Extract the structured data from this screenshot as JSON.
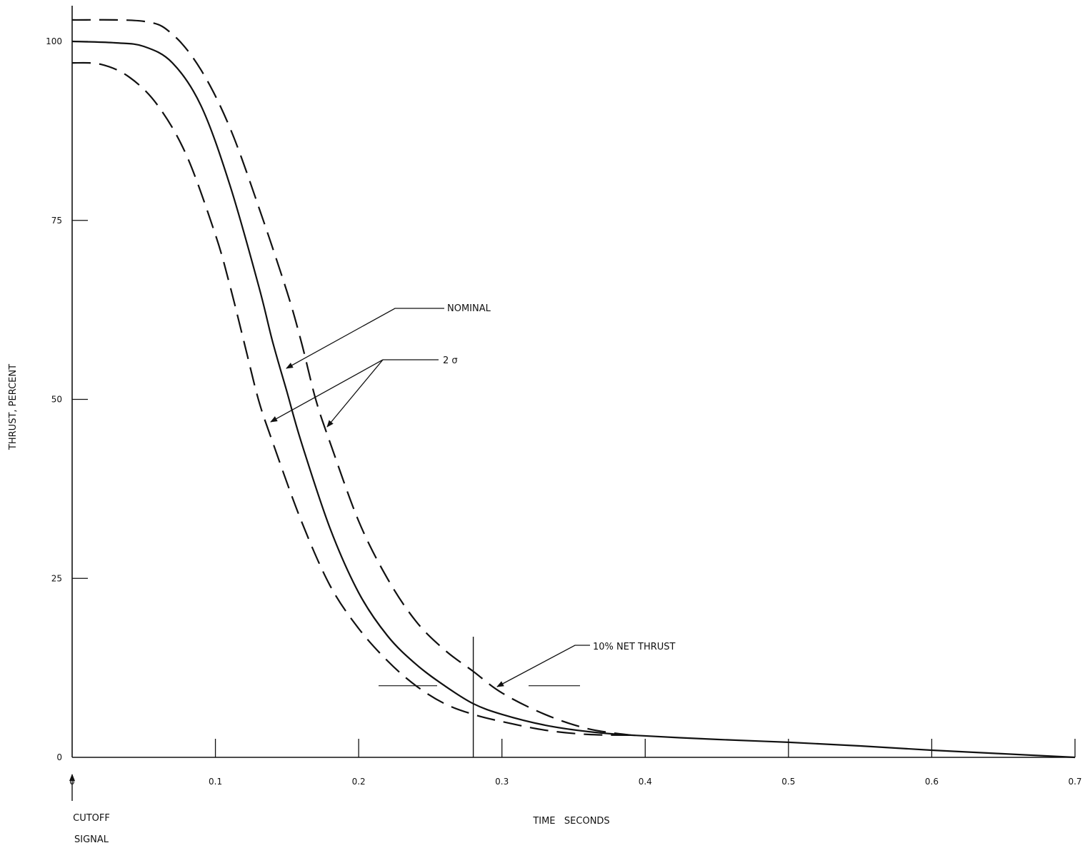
{
  "chart_data": {
    "type": "line",
    "title": "",
    "xlabel": "TIME   SECONDS",
    "ylabel": "THRUST, PERCENT",
    "xlim": [
      0,
      0.7
    ],
    "ylim": [
      0,
      105
    ],
    "x_ticks": [
      0,
      0.1,
      0.2,
      0.3,
      0.4,
      0.5,
      0.6,
      0.7
    ],
    "x_tick_labels": [
      "0",
      "0.1",
      "0.2",
      "0.3",
      "0.4",
      "0.5",
      "0.6",
      "0.7"
    ],
    "y_ticks": [
      0,
      25,
      50,
      75,
      100
    ],
    "y_tick_labels": [
      "0",
      "25",
      "50",
      "75",
      "100"
    ],
    "grid": false,
    "series": [
      {
        "name": "NOMINAL",
        "style": "solid",
        "points": [
          [
            0,
            100
          ],
          [
            0.03,
            99.8
          ],
          [
            0.05,
            99.3
          ],
          [
            0.07,
            97
          ],
          [
            0.09,
            91
          ],
          [
            0.11,
            80
          ],
          [
            0.13,
            66
          ],
          [
            0.14,
            58
          ],
          [
            0.15,
            51
          ],
          [
            0.16,
            44
          ],
          [
            0.18,
            32
          ],
          [
            0.2,
            23
          ],
          [
            0.22,
            17
          ],
          [
            0.24,
            13
          ],
          [
            0.26,
            10
          ],
          [
            0.28,
            7.5
          ],
          [
            0.3,
            6
          ],
          [
            0.33,
            4.5
          ],
          [
            0.36,
            3.6
          ],
          [
            0.39,
            3.1
          ],
          [
            0.45,
            2.5
          ],
          [
            0.5,
            2.1
          ],
          [
            0.55,
            1.6
          ],
          [
            0.6,
            1
          ],
          [
            0.65,
            0.5
          ],
          [
            0.7,
            0
          ]
        ]
      },
      {
        "name": "2 σ",
        "style": "dashed",
        "points": [
          [
            0,
            103
          ],
          [
            0.05,
            102.8
          ],
          [
            0.07,
            101
          ],
          [
            0.09,
            96
          ],
          [
            0.11,
            88
          ],
          [
            0.13,
            77
          ],
          [
            0.15,
            65
          ],
          [
            0.16,
            58
          ],
          [
            0.17,
            50
          ],
          [
            0.18,
            44
          ],
          [
            0.2,
            33
          ],
          [
            0.22,
            25
          ],
          [
            0.24,
            19
          ],
          [
            0.26,
            15
          ],
          [
            0.28,
            12
          ],
          [
            0.3,
            9
          ],
          [
            0.33,
            6
          ],
          [
            0.36,
            4
          ],
          [
            0.39,
            3.1
          ]
        ]
      },
      {
        "name": "2 σ",
        "style": "dashed",
        "points": [
          [
            0,
            97
          ],
          [
            0.02,
            96.8
          ],
          [
            0.04,
            95
          ],
          [
            0.06,
            91
          ],
          [
            0.08,
            84
          ],
          [
            0.1,
            73
          ],
          [
            0.11,
            66
          ],
          [
            0.12,
            58
          ],
          [
            0.13,
            50
          ],
          [
            0.14,
            44
          ],
          [
            0.16,
            33
          ],
          [
            0.18,
            24
          ],
          [
            0.2,
            18
          ],
          [
            0.22,
            13.5
          ],
          [
            0.24,
            10
          ],
          [
            0.26,
            7.5
          ],
          [
            0.28,
            6
          ],
          [
            0.3,
            5
          ],
          [
            0.33,
            3.8
          ],
          [
            0.36,
            3.2
          ],
          [
            0.39,
            3.1
          ]
        ]
      }
    ],
    "annotations": {
      "nominal_label": "NOMINAL",
      "sigma_label": "2 σ",
      "net_thrust_label": "10% NET THRUST",
      "net_thrust_level": 10,
      "net_thrust_time": 0.28,
      "cutoff_label_line1": "CUTOFF",
      "cutoff_label_line2": "SIGNAL"
    }
  }
}
